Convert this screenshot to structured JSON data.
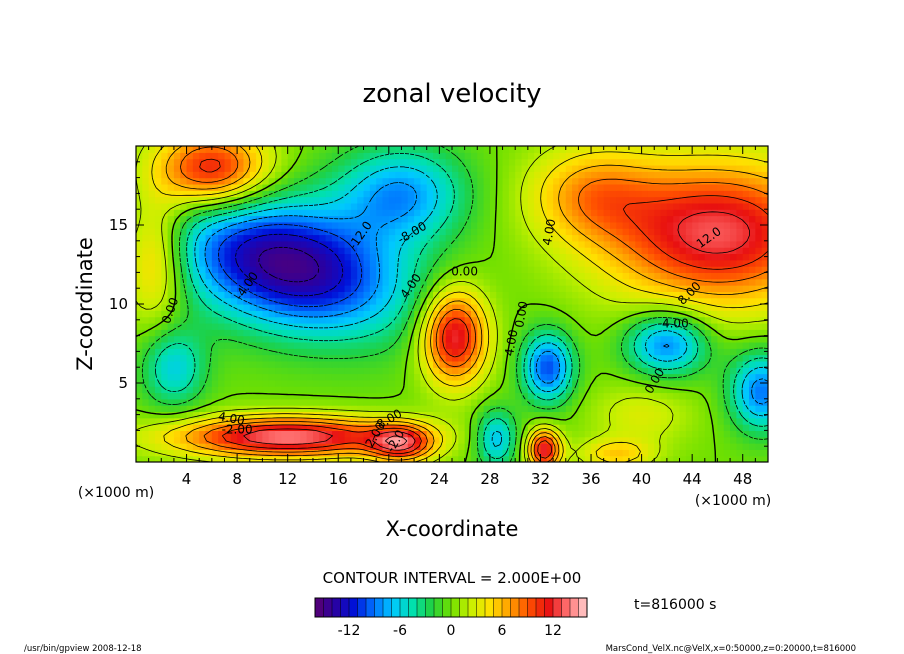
{
  "chart_data": {
    "type": "heatmap",
    "title": "zonal velocity",
    "xlabel": "X-coordinate",
    "ylabel": "Z-coordinate",
    "x_unit_label": "(×1000 m)",
    "y_unit_label": "(×1000 m)",
    "xlim": [
      0,
      50
    ],
    "ylim": [
      0,
      20
    ],
    "x_ticks": [
      4,
      8,
      12,
      16,
      20,
      24,
      28,
      32,
      36,
      40,
      44,
      48
    ],
    "y_ticks": [
      5,
      10,
      15
    ],
    "contour_interval_text": "CONTOUR INTERVAL = 2.000E+00",
    "time_text": "t=816000 s",
    "colorbar": {
      "ticks": [
        -12,
        -6,
        0,
        6,
        12
      ],
      "range": [
        -16,
        16
      ],
      "colors": [
        "#5a0070",
        "#2a00a0",
        "#0010d8",
        "#0070ff",
        "#00c8ff",
        "#00e0b0",
        "#20d040",
        "#70e000",
        "#c8f000",
        "#ffe000",
        "#ffa000",
        "#ff5000",
        "#e81010",
        "#ff7070",
        "#ffd0d0"
      ]
    },
    "contour_labels": [
      "-12.0",
      "-8.00",
      "-4.00",
      "-4.00",
      "-2.00",
      "0.00",
      "0.00",
      "0.00",
      "0.00",
      "4.00",
      "4.00",
      "4.00",
      "4.00",
      "8.00",
      "8.00",
      "12.0",
      "2.00",
      "-2.0"
    ],
    "features": [
      {
        "type": "negative",
        "x": 11.5,
        "z": 13.0,
        "peak": -17
      },
      {
        "type": "positive",
        "x": 12.0,
        "z": 2.0,
        "peak": 16
      },
      {
        "type": "positive",
        "x": 25.0,
        "z": 8.0,
        "peak": 13
      },
      {
        "type": "positive",
        "x": 46.0,
        "z": 13.0,
        "peak": 14
      },
      {
        "type": "positive",
        "x": 7.5,
        "z": 18.3,
        "peak": 14
      },
      {
        "type": "negative",
        "x": 32.5,
        "z": 6.0,
        "peak": -10
      },
      {
        "type": "negative",
        "x": 42.0,
        "z": 7.5,
        "peak": -9
      },
      {
        "type": "negative",
        "x": 49.0,
        "z": 4.5,
        "peak": -8
      },
      {
        "type": "positive",
        "x": 32.0,
        "z": 1.0,
        "peak": 13
      }
    ]
  },
  "footer": {
    "left": "/usr/bin/gpview   2008-12-18",
    "right": "MarsCond_VelX.nc@VelX,x=0:50000,z=0:20000,t=816000"
  }
}
